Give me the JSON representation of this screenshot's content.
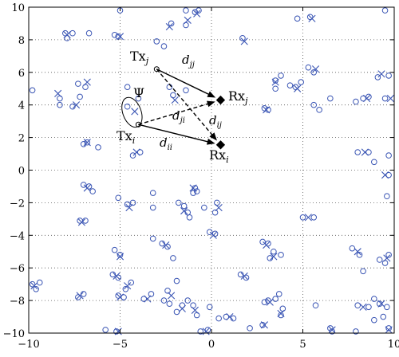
{
  "chart_data": {
    "type": "scatter",
    "xlim": [
      -10,
      10
    ],
    "ylim": [
      -10,
      10
    ],
    "grid": true,
    "x_ticks": [
      -10,
      -5,
      0,
      5,
      10
    ],
    "y_ticks": [
      -10,
      -8,
      -6,
      -4,
      -2,
      0,
      2,
      4,
      6,
      8,
      10
    ],
    "x_tick_labels": [
      "−10",
      "−5",
      "0",
      "5",
      "10"
    ],
    "y_tick_labels": [
      "−10",
      "−8",
      "−6",
      "−4",
      "−2",
      "0",
      "2",
      "4",
      "6",
      "8",
      "10"
    ],
    "series": [
      {
        "marker": "circle",
        "color": "#3a55b4",
        "points": [
          [
            -8.0,
            8.4
          ],
          [
            -7.6,
            8.4
          ],
          [
            -7.9,
            8.1
          ],
          [
            -6.7,
            8.4
          ],
          [
            -5.3,
            8.3
          ],
          [
            -5.1,
            8.2
          ],
          [
            -5.0,
            9.8
          ],
          [
            -3.0,
            7.9
          ],
          [
            -2.6,
            7.6
          ],
          [
            -2.2,
            9.0
          ],
          [
            -1.4,
            9.8
          ],
          [
            -1.4,
            8.9
          ],
          [
            -0.9,
            9.7
          ],
          [
            -0.7,
            9.8
          ],
          [
            1.7,
            8.1
          ],
          [
            4.7,
            9.3
          ],
          [
            5.4,
            9.4
          ],
          [
            9.5,
            9.8
          ],
          [
            -9.8,
            4.9
          ],
          [
            -8.3,
            4.4
          ],
          [
            -8.3,
            4.0
          ],
          [
            -7.3,
            5.3
          ],
          [
            -7.2,
            4.5
          ],
          [
            -6.9,
            5.1
          ],
          [
            -7.6,
            3.9
          ],
          [
            -6.8,
            1.7
          ],
          [
            -7.0,
            1.6
          ],
          [
            -6.2,
            1.4
          ],
          [
            -4.6,
            5.1
          ],
          [
            -4.0,
            4.4
          ],
          [
            -4.6,
            3.9
          ],
          [
            -2.3,
            5.1
          ],
          [
            -2.1,
            4.6
          ],
          [
            -1.4,
            4.9
          ],
          [
            -3.9,
            1.1
          ],
          [
            -4.3,
            0.9
          ],
          [
            3.5,
            5.5
          ],
          [
            3.5,
            5.0
          ],
          [
            3.8,
            5.8
          ],
          [
            4.3,
            5.2
          ],
          [
            4.6,
            5.1
          ],
          [
            4.9,
            5.4
          ],
          [
            2.9,
            3.8
          ],
          [
            3.1,
            3.7
          ],
          [
            5.3,
            6.3
          ],
          [
            5.6,
            6.0
          ],
          [
            5.9,
            3.7
          ],
          [
            5.6,
            4.0
          ],
          [
            6.5,
            4.4
          ],
          [
            7.9,
            4.2
          ],
          [
            8.6,
            4.5
          ],
          [
            8.3,
            4.4
          ],
          [
            9.5,
            4.4
          ],
          [
            9.1,
            5.7
          ],
          [
            9.7,
            5.8
          ],
          [
            8.0,
            1.1
          ],
          [
            8.6,
            1.1
          ],
          [
            8.9,
            0.5
          ],
          [
            9.7,
            0.9
          ],
          [
            9.7,
            -0.3
          ],
          [
            9.6,
            -1.6
          ],
          [
            -7.0,
            -0.9
          ],
          [
            -6.7,
            -1.0
          ],
          [
            -6.5,
            -1.3
          ],
          [
            -7.2,
            -3.1
          ],
          [
            -6.9,
            -3.1
          ],
          [
            -5.1,
            -1.7
          ],
          [
            -4.6,
            -2.1
          ],
          [
            -4.3,
            -2.0
          ],
          [
            -3.2,
            -1.4
          ],
          [
            -3.2,
            -2.3
          ],
          [
            -1.5,
            -2.2
          ],
          [
            -1.3,
            -2.6
          ],
          [
            -1.2,
            -2.9
          ],
          [
            -1.0,
            -1.4
          ],
          [
            -0.9,
            -1.1
          ],
          [
            -0.8,
            -1.3
          ],
          [
            -0.4,
            -2.3
          ],
          [
            0.3,
            -2.0
          ],
          [
            0.2,
            -2.6
          ],
          [
            -0.1,
            -3.8
          ],
          [
            0.2,
            -3.9
          ],
          [
            -1.8,
            -2.0
          ],
          [
            -3.2,
            -4.2
          ],
          [
            -2.7,
            -4.5
          ],
          [
            -2.4,
            -4.7
          ],
          [
            -2.1,
            -5.4
          ],
          [
            -5.3,
            -4.9
          ],
          [
            -5.0,
            -5.2
          ],
          [
            -5.4,
            -6.4
          ],
          [
            -5.1,
            -6.6
          ],
          [
            -4.7,
            -7.3
          ],
          [
            -4.4,
            -6.9
          ],
          [
            -3.7,
            -7.9
          ],
          [
            -4.8,
            -7.8
          ],
          [
            -5.1,
            -7.7
          ],
          [
            -5.8,
            -9.8
          ],
          [
            -5.2,
            -9.9
          ],
          [
            -7.3,
            -7.8
          ],
          [
            -7.0,
            -7.6
          ],
          [
            -9.8,
            -7.0
          ],
          [
            -9.6,
            -7.3
          ],
          [
            -9.4,
            -6.9
          ],
          [
            -3.3,
            -7.6
          ],
          [
            -2.6,
            -8.0
          ],
          [
            -2.4,
            -7.4
          ],
          [
            -1.9,
            -6.8
          ],
          [
            -2.3,
            -8.2
          ],
          [
            -1.6,
            -8.3
          ],
          [
            -1.9,
            -8.7
          ],
          [
            -1.3,
            -8.0
          ],
          [
            -1.0,
            -8.3
          ],
          [
            -0.8,
            -8.9
          ],
          [
            -0.1,
            -8.4
          ],
          [
            -0.6,
            -9.9
          ],
          [
            -0.2,
            -9.8
          ],
          [
            0.4,
            -9.1
          ],
          [
            0.8,
            -9.0
          ],
          [
            1.2,
            -9.1
          ],
          [
            1.6,
            -6.4
          ],
          [
            1.9,
            -6.6
          ],
          [
            2.1,
            -9.7
          ],
          [
            2.8,
            -9.5
          ],
          [
            2.9,
            -8.1
          ],
          [
            3.1,
            -8.0
          ],
          [
            3.5,
            -7.9
          ],
          [
            3.9,
            -8.5
          ],
          [
            3.8,
            -8.9
          ],
          [
            3.7,
            -7.6
          ],
          [
            3.4,
            -5.0
          ],
          [
            3.2,
            -5.4
          ],
          [
            3.8,
            -5.2
          ],
          [
            3.1,
            -4.5
          ],
          [
            2.8,
            -4.4
          ],
          [
            5.0,
            -2.9
          ],
          [
            5.6,
            -2.9
          ],
          [
            5.7,
            -8.3
          ],
          [
            6.6,
            -9.9
          ],
          [
            6.5,
            -9.7
          ],
          [
            7.9,
            -9.9
          ],
          [
            7.7,
            -4.8
          ],
          [
            8.1,
            -5.2
          ],
          [
            8.3,
            -6.2
          ],
          [
            8.9,
            -7.9
          ],
          [
            9.2,
            -8.2
          ],
          [
            9.4,
            -9.0
          ],
          [
            9.7,
            -9.7
          ],
          [
            9.6,
            -8.4
          ],
          [
            9.2,
            -5.5
          ],
          [
            9.7,
            -5.2
          ],
          [
            9.5,
            -5.7
          ],
          [
            8.0,
            -8.3
          ],
          [
            8.6,
            -8.4
          ],
          [
            8.9,
            -9.2
          ]
        ]
      },
      {
        "marker": "x",
        "color": "#3a55b4",
        "points": [
          [
            -7.9,
            8.3
          ],
          [
            -5.0,
            8.2
          ],
          [
            -2.3,
            8.8
          ],
          [
            -1.3,
            9.2
          ],
          [
            -0.8,
            9.6
          ],
          [
            1.8,
            7.9
          ],
          [
            5.5,
            9.3
          ],
          [
            -8.4,
            4.7
          ],
          [
            -7.4,
            4.0
          ],
          [
            -6.8,
            5.4
          ],
          [
            -6.8,
            1.7
          ],
          [
            -4.2,
            3.6
          ],
          [
            -2.0,
            4.3
          ],
          [
            -4.1,
            1.1
          ],
          [
            3.5,
            5.4
          ],
          [
            4.7,
            5.0
          ],
          [
            3.0,
            3.7
          ],
          [
            5.7,
            6.2
          ],
          [
            8.5,
            4.4
          ],
          [
            9.8,
            4.4
          ],
          [
            9.3,
            5.9
          ],
          [
            8.4,
            1.1
          ],
          [
            9.5,
            -0.3
          ],
          [
            -6.8,
            -1.1
          ],
          [
            -7.1,
            -3.2
          ],
          [
            -4.5,
            -2.3
          ],
          [
            -1.5,
            -2.5
          ],
          [
            -1.0,
            -1.1
          ],
          [
            0.4,
            -2.3
          ],
          [
            0.1,
            -4.0
          ],
          [
            -2.5,
            -4.6
          ],
          [
            -5.0,
            -5.3
          ],
          [
            -5.2,
            -6.5
          ],
          [
            -4.6,
            -7.1
          ],
          [
            -3.5,
            -7.9
          ],
          [
            -5.0,
            -7.8
          ],
          [
            -5.1,
            -9.9
          ],
          [
            -7.2,
            -7.7
          ],
          [
            -9.7,
            -7.1
          ],
          [
            -2.2,
            -7.7
          ],
          [
            -1.6,
            -8.5
          ],
          [
            -0.9,
            -8.6
          ],
          [
            -0.3,
            -9.9
          ],
          [
            1.0,
            -9.0
          ],
          [
            1.8,
            -6.5
          ],
          [
            2.9,
            -9.5
          ],
          [
            3.2,
            -8.1
          ],
          [
            3.8,
            -8.8
          ],
          [
            3.4,
            -5.3
          ],
          [
            3.0,
            -4.6
          ],
          [
            5.3,
            -2.9
          ],
          [
            6.6,
            -9.8
          ],
          [
            8.0,
            -5.0
          ],
          [
            9.3,
            -8.2
          ],
          [
            9.7,
            -9.8
          ],
          [
            9.6,
            -5.4
          ],
          [
            8.3,
            -8.4
          ]
        ]
      }
    ],
    "annotations": {
      "tx_j": {
        "x": -3.0,
        "y": 6.2
      },
      "tx_i": {
        "x": -4.0,
        "y": 2.8
      },
      "rx_j": {
        "x": 0.5,
        "y": 4.3
      },
      "rx_i": {
        "x": 0.5,
        "y": 1.55
      },
      "psi_ellipse": {
        "cx": -4.35,
        "cy": 3.55,
        "rx": 0.5,
        "ry": 0.95
      }
    }
  },
  "labels": {
    "tx_j": "Tx",
    "tx_j_sub": "j",
    "tx_i": "Tx",
    "tx_i_sub": "i",
    "rx_j": "Rx",
    "rx_j_sub": "j",
    "rx_i": "Rx",
    "rx_i_sub": "i",
    "psi": "Ψ",
    "d_jj": "d",
    "d_jj_sub": "jj",
    "d_ji": "d",
    "d_ji_sub": "ji",
    "d_ij": "d",
    "d_ij_sub": "ij",
    "d_ii": "d",
    "d_ii_sub": "ii"
  }
}
